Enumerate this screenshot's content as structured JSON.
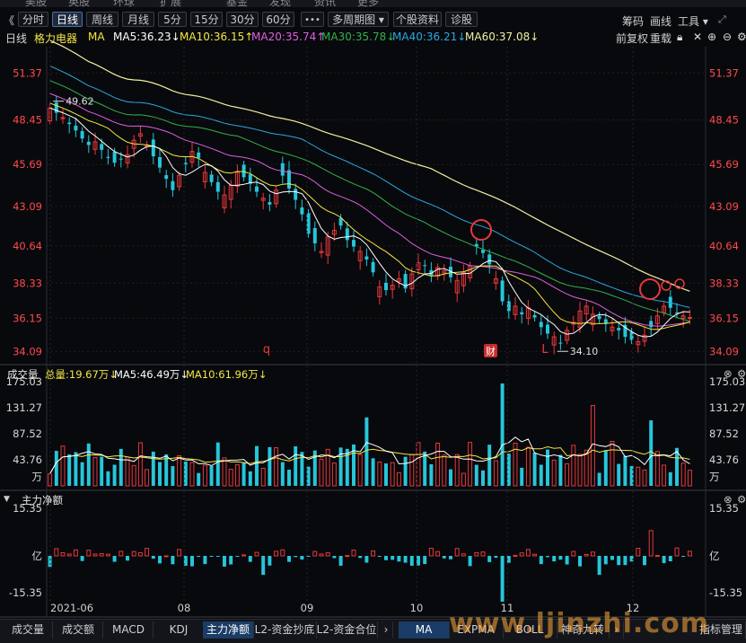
{
  "top_nav": [
    "美股",
    "英股",
    "环球",
    "扩展",
    "基金",
    "发现",
    "资讯",
    "更多"
  ],
  "toolbar": {
    "back": "《",
    "periods": [
      "分时",
      "日线",
      "周线",
      "月线",
      "5分",
      "15分",
      "30分",
      "60分"
    ],
    "active_period": "日线",
    "more": "•••",
    "multi_period": "多周期图 ▾",
    "profile": "个股资料",
    "diagnose": "诊股",
    "right": [
      "筹码",
      "画线",
      "工具 ▾"
    ]
  },
  "ma_bar": {
    "period": "日线",
    "name": "格力电器",
    "label": "MA",
    "ma5": "MA5:36.23↓",
    "ma10": "MA10:36.15↑",
    "ma20": "MA20:35.74↑",
    "ma30": "MA30:35.78↓",
    "ma40": "MA40:36.21↓",
    "ma60": "MA60:37.08↓",
    "fq": "前复权",
    "chongjia": "重载"
  },
  "colors": {
    "up": "#e8383b",
    "down": "#26c6da",
    "ma5": "#ffffff",
    "ma10": "#f5e642",
    "ma20": "#e05fe0",
    "ma30": "#35b04a",
    "ma40": "#2aa8e0",
    "ma60": "#f2f0a0",
    "axis_red": "#ff4a4a"
  },
  "price_axis": [
    "51.37",
    "48.45",
    "45.69",
    "43.09",
    "40.64",
    "38.33",
    "36.15",
    "34.09"
  ],
  "annotations": {
    "high": "49.62",
    "low": "34.10",
    "marks": [
      "q",
      "财",
      "L"
    ]
  },
  "volume_header": {
    "title": "成交量",
    "total": "总量:19.67万↓",
    "ma5": "MA5:46.49万↓",
    "ma10": "MA10:61.96万↓"
  },
  "volume_axis": [
    "175.03",
    "131.27",
    "87.52",
    "43.76",
    "万"
  ],
  "flow_header": {
    "title": "主力净额"
  },
  "flow_axis": [
    "15.35",
    "亿",
    "-15.35"
  ],
  "date_axis": [
    "2021-06",
    "08",
    "09",
    "10",
    "11",
    "12"
  ],
  "bottom_tabs": [
    "成交量",
    "成交额",
    "MACD",
    "KDJ",
    "主力净额",
    "L2-资金抄底",
    "L2-资金合位",
    "MA",
    "EXPMA",
    "BOLL",
    "神奇九转",
    "指标管理"
  ],
  "active_bottom_tab": "主力净额",
  "watermark": "www.ljinzhi.com",
  "chart_data": {
    "type": "candlestick",
    "ylim": [
      33.5,
      53.0
    ],
    "candles_approx_close": [
      49.2,
      48.9,
      48.6,
      48.2,
      47.8,
      47.3,
      46.9,
      47.1,
      46.6,
      46.1,
      45.8,
      46.0,
      46.3,
      47.2,
      47.6,
      46.9,
      46.2,
      45.5,
      44.8,
      44.1,
      45.0,
      45.7,
      46.5,
      46.1,
      45.2,
      44.6,
      44.0,
      43.8,
      44.4,
      45.2,
      44.9,
      44.5,
      44.0,
      43.6,
      43.2,
      44.1,
      45.0,
      44.2,
      43.5,
      42.6,
      41.4,
      40.8,
      40.3,
      41.2,
      41.6,
      41.9,
      41.0,
      40.6,
      40.3,
      39.8,
      39.0,
      38.1,
      37.9,
      38.2,
      38.6,
      38.0,
      38.9,
      39.6,
      39.4,
      38.8,
      39.3,
      39.1,
      38.7,
      38.5,
      39.0,
      39.4,
      40.6,
      40.2,
      39.5,
      38.6,
      37.2,
      36.6,
      36.9,
      36.4,
      36.8,
      36.2,
      35.6,
      35.2,
      35.0,
      34.6,
      35.4,
      35.9,
      36.6,
      36.9,
      36.4,
      36.1,
      35.8,
      35.6,
      35.4,
      35.0,
      34.8,
      34.7,
      35.1,
      35.6,
      36.3,
      36.9,
      36.8,
      36.5,
      36.3,
      36.2
    ],
    "volume_ylim": [
      0,
      175.03
    ],
    "flow_ylim": [
      -15.35,
      15.35
    ]
  }
}
